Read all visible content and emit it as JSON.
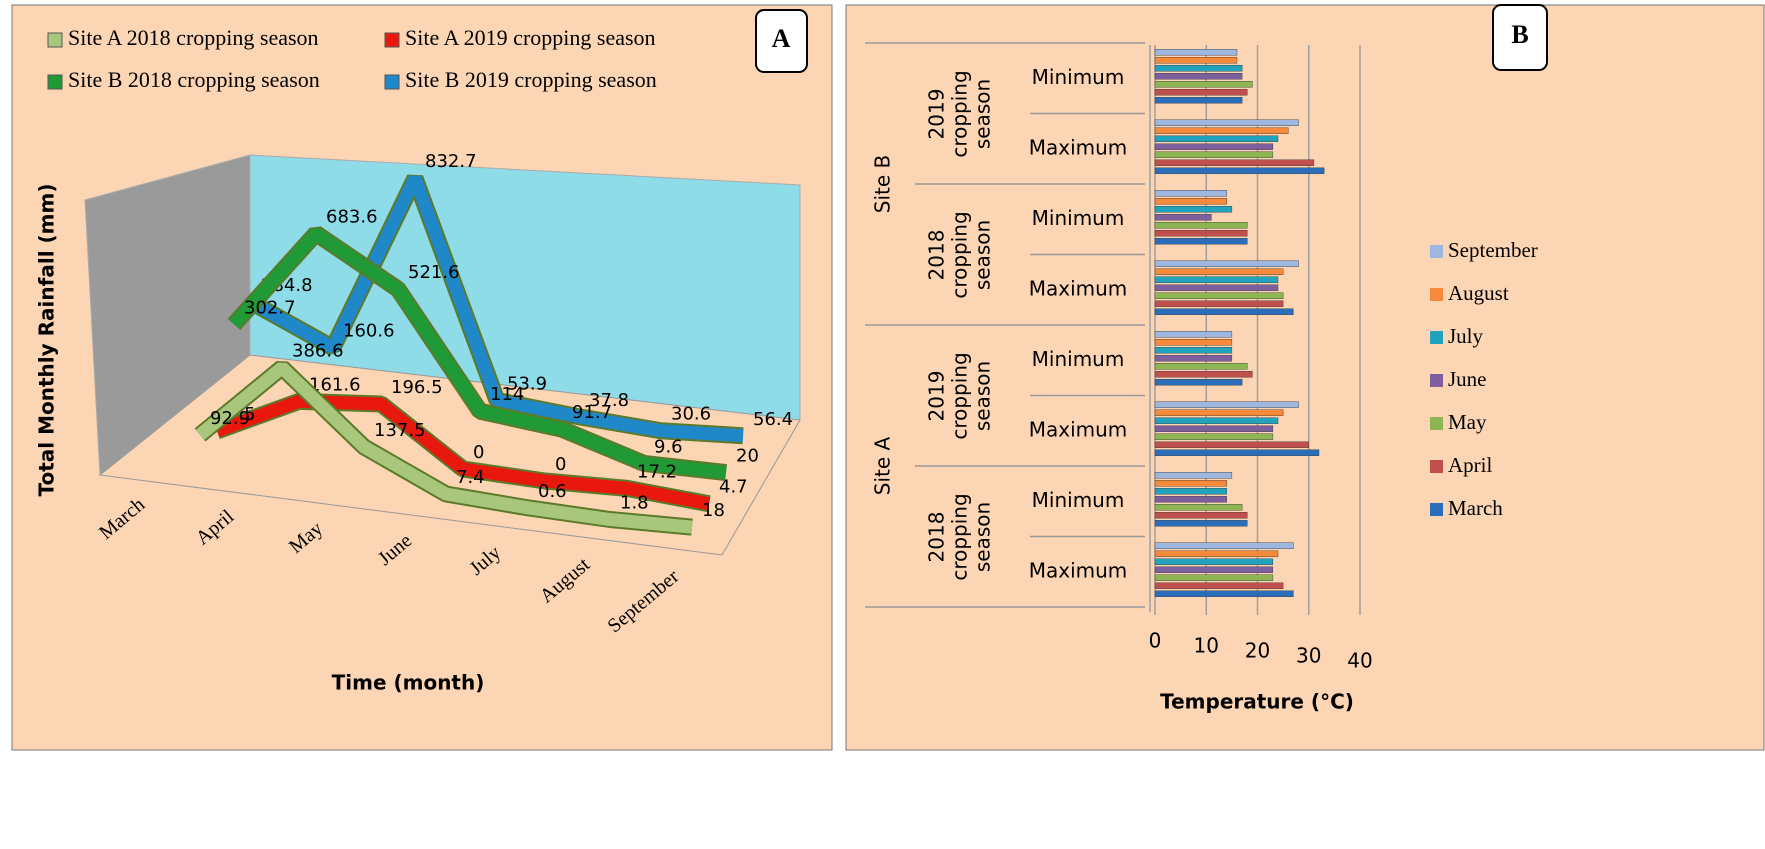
{
  "chart_data": [
    {
      "type": "line3d",
      "panel_label": "A",
      "x_label": "Time (month)",
      "y_label": "Total Monthly Rainfall (mm)",
      "categories": [
        "March",
        "April",
        "May",
        "June",
        "July",
        "August",
        "September"
      ],
      "series": [
        {
          "name": "Site A 2018 cropping season",
          "color": "#a8c77c",
          "values": [
            92.9,
            386.6,
            137.5,
            7.4,
            0.6,
            1.8,
            18
          ]
        },
        {
          "name": "Site A 2019 cropping season",
          "color": "#e8180f",
          "values": [
            7.5,
            161.6,
            196.5,
            0,
            0,
            17.2,
            4.7
          ]
        },
        {
          "name": "Site B 2018 cropping season",
          "color": "#1f9a37",
          "values": [
            302.7,
            683.6,
            521.6,
            114,
            91.7,
            9.6,
            20
          ]
        },
        {
          "name": "Site B 2019 cropping season",
          "color": "#1f88c9",
          "values": [
            284.8,
            160.6,
            832.7,
            53.9,
            37.8,
            30.6,
            56.4
          ]
        }
      ]
    },
    {
      "type": "bar",
      "orientation": "horizontal",
      "panel_label": "B",
      "x_label": "Temperature (°C)",
      "categories": [
        "Maximum",
        "Minimum",
        "Maximum",
        "Minimum",
        "Maximum",
        "Minimum",
        "Maximum",
        "Minimum"
      ],
      "season_groups": [
        "2018 cropping season",
        "2019 cropping season",
        "2018 cropping season",
        "2019 cropping season"
      ],
      "site_groups": [
        "Site A",
        "Site B"
      ],
      "xlim": [
        0,
        40
      ],
      "xticks": [
        0,
        10,
        20,
        30,
        40
      ],
      "grid": true,
      "legend": "right",
      "series": [
        {
          "name": "March",
          "color": "#2a6ebb",
          "values": [
            27,
            18,
            32,
            17,
            27,
            18,
            33,
            17
          ]
        },
        {
          "name": "April",
          "color": "#c0504d",
          "values": [
            25,
            18,
            30,
            19,
            25,
            18,
            31,
            18
          ]
        },
        {
          "name": "May",
          "color": "#8db552",
          "values": [
            23,
            17,
            23,
            18,
            25,
            18,
            23,
            19
          ]
        },
        {
          "name": "June",
          "color": "#7d5fa0",
          "values": [
            23,
            14,
            23,
            15,
            24,
            11,
            23,
            17
          ]
        },
        {
          "name": "July",
          "color": "#22a3bd",
          "values": [
            23,
            14,
            24,
            15,
            24,
            15,
            24,
            17
          ]
        },
        {
          "name": "August",
          "color": "#f6893a",
          "values": [
            24,
            14,
            25,
            15,
            25,
            14,
            26,
            16
          ]
        },
        {
          "name": "September",
          "color": "#9db7e0",
          "values": [
            27,
            15,
            28,
            15,
            28,
            14,
            28,
            16
          ]
        }
      ]
    }
  ]
}
